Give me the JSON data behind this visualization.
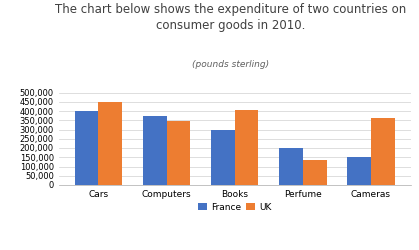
{
  "title_line1": "The chart below shows the expenditure of two countries on",
  "title_line2": "consumer goods in 2010.",
  "subtitle": "(pounds sterling)",
  "categories": [
    "Cars",
    "Computers",
    "Books",
    "Perfume",
    "Cameras"
  ],
  "france_values": [
    400000,
    375000,
    300000,
    200000,
    150000
  ],
  "uk_values": [
    450000,
    345000,
    405000,
    135000,
    360000
  ],
  "france_color": "#4472C4",
  "uk_color": "#ED7D31",
  "ylim": [
    0,
    500000
  ],
  "yticks": [
    0,
    50000,
    100000,
    150000,
    200000,
    250000,
    300000,
    350000,
    400000,
    450000,
    500000
  ],
  "background_color": "#ffffff",
  "bar_width": 0.35,
  "legend_labels": [
    "France",
    "UK"
  ],
  "title_fontsize": 8.5,
  "subtitle_fontsize": 6.5
}
